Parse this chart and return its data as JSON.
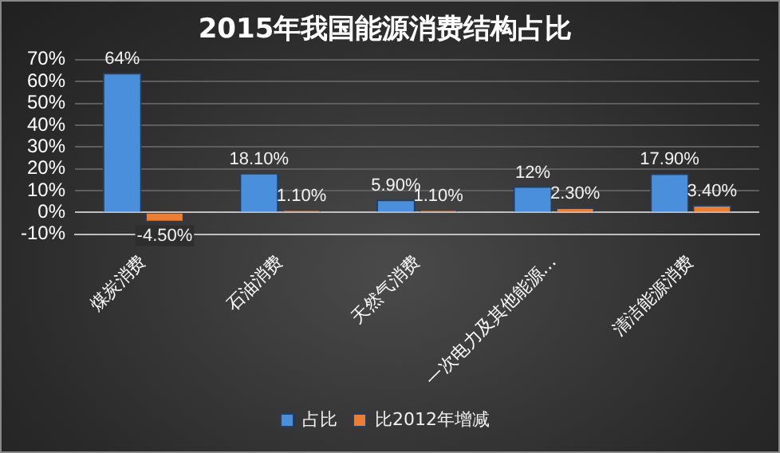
{
  "chart_data": {
    "type": "bar",
    "title": "2015年我国能源消费结构占比",
    "categories": [
      "煤炭消费",
      "石油消费",
      "天然气消费",
      "一次电力及其他能源…",
      "清洁能源消费"
    ],
    "series": [
      {
        "name": "占比",
        "color": "#4a8fdc",
        "values": [
          64,
          18.1,
          5.9,
          12,
          17.9
        ],
        "value_labels": [
          "64%",
          "18.10%",
          "5.90%",
          "12%",
          "17.90%"
        ]
      },
      {
        "name": "比2012年增减",
        "color": "#ed7d31",
        "values": [
          -4.5,
          1.1,
          1.1,
          2.3,
          3.4
        ],
        "value_labels": [
          "-4.50%",
          "1.10%",
          "1.10%",
          "2.30%",
          "3.40%"
        ]
      }
    ],
    "ylim": [
      -10,
      70
    ],
    "yticks": [
      {
        "value": -10,
        "label": "-10%"
      },
      {
        "value": 0,
        "label": "0%"
      },
      {
        "value": 10,
        "label": "10%"
      },
      {
        "value": 20,
        "label": "20%"
      },
      {
        "value": 30,
        "label": "30%"
      },
      {
        "value": 40,
        "label": "40%"
      },
      {
        "value": 50,
        "label": "50%"
      },
      {
        "value": 60,
        "label": "60%"
      },
      {
        "value": 70,
        "label": "70%"
      }
    ],
    "grid": "y",
    "legend": "bottom"
  }
}
